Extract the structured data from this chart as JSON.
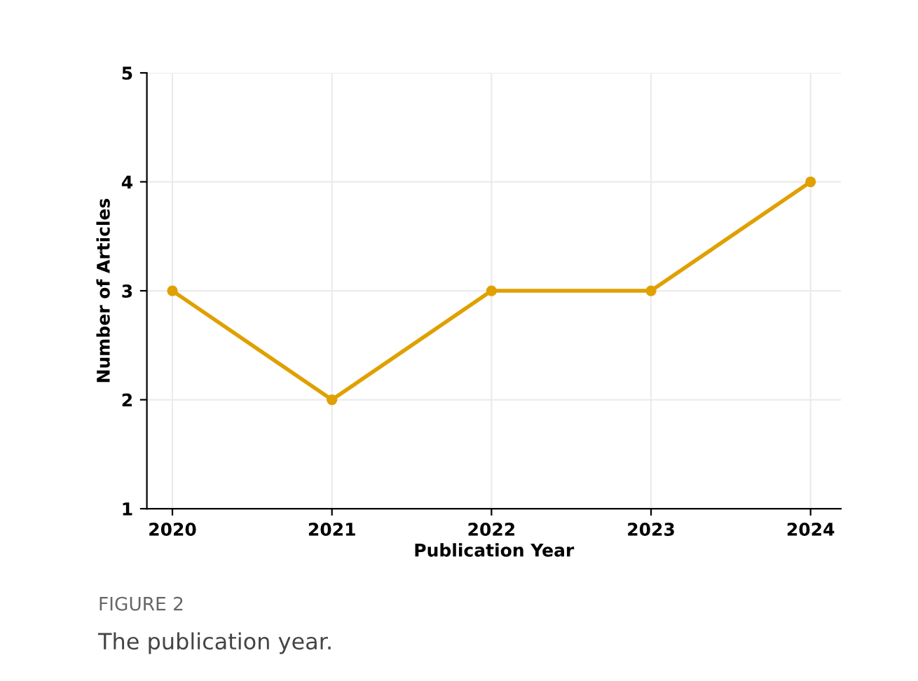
{
  "chart_data": {
    "type": "line",
    "xlabel": "Publication Year",
    "ylabel": "Number of Articles",
    "x": [
      2020,
      2021,
      2022,
      2023,
      2024
    ],
    "series": [
      {
        "color": "#e0a000",
        "values": [
          3,
          2,
          3,
          3,
          4
        ]
      }
    ],
    "xlim": [
      2019.84,
      2024.19
    ],
    "ylim": [
      1,
      5
    ],
    "xticks": [
      2020,
      2021,
      2022,
      2023,
      2024
    ],
    "yticks": [
      1,
      2,
      3,
      4,
      5
    ],
    "grid": true,
    "marker": "circle",
    "line_style": "solid",
    "annotations": [
      "FIGURE 2",
      "The publication year."
    ]
  }
}
